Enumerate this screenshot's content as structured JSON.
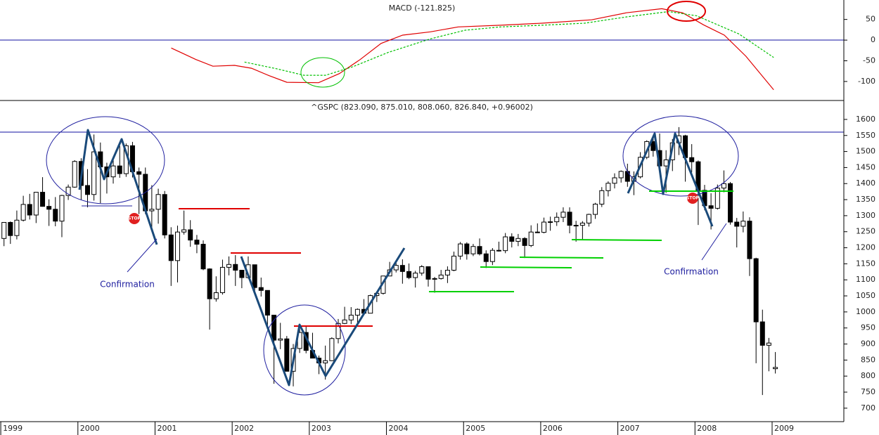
{
  "chart_data": [
    {
      "type": "line",
      "title": "MACD (-121.825)",
      "xlim": [
        1998.99,
        2009.93
      ],
      "ylim": [
        -146,
        97
      ],
      "yticks": [
        -100,
        -50,
        0,
        50
      ],
      "series": [
        {
          "color": "#e00000",
          "style": "solid",
          "x": [
            2001.21,
            2001.53,
            2001.75,
            2002.03,
            2002.25,
            2002.48,
            2002.71,
            2003.12,
            2003.39,
            2003.66,
            2003.93,
            2004.21,
            2004.57,
            2004.93,
            2005.48,
            2006.02,
            2006.66,
            2007.11,
            2007.57,
            2007.84,
            2008.11,
            2008.38,
            2008.66,
            2009.02
          ],
          "values": [
            -19,
            -47,
            -63,
            -61,
            -68,
            -86,
            -102,
            -103,
            -81,
            -47,
            -8,
            12,
            20,
            32,
            36,
            41,
            49,
            66,
            76,
            66,
            37,
            12,
            -39,
            -120
          ]
        },
        {
          "color": "#00c000",
          "style": "dashed",
          "x": [
            2002.16,
            2002.57,
            2002.93,
            2003.21,
            2003.57,
            2004.02,
            2004.57,
            2005.02,
            2005.48,
            2006.02,
            2006.57,
            2007.11,
            2007.66,
            2008.02,
            2008.57,
            2009.02
          ],
          "values": [
            -53,
            -69,
            -85,
            -85,
            -64,
            -30,
            3,
            24,
            32,
            36,
            41,
            56,
            69,
            59,
            15,
            -42
          ]
        }
      ]
    },
    {
      "type": "candlestick",
      "title": "^GSPC (823.090, 875.010, 808.060, 826.840, +0.96002)",
      "xlim": [
        1998.99,
        2009.93
      ],
      "xticks": [
        1999,
        2000,
        2001,
        2002,
        2003,
        2004,
        2005,
        2006,
        2007,
        2008,
        2009
      ],
      "ylim": [
        658,
        1659
      ],
      "yticks": [
        700,
        750,
        800,
        850,
        900,
        950,
        1000,
        1050,
        1100,
        1150,
        1200,
        1250,
        1300,
        1350,
        1400,
        1450,
        1500,
        1550,
        1600
      ],
      "up_color": "#ffffff",
      "down_color": "#000000",
      "annotations": [
        "Confirmation",
        "Confirmation",
        "STOP",
        "STOP"
      ],
      "x": [
        1999.042,
        1999.125,
        1999.208,
        1999.292,
        1999.375,
        1999.458,
        1999.542,
        1999.625,
        1999.708,
        1999.792,
        1999.875,
        1999.958,
        2000.042,
        2000.125,
        2000.208,
        2000.292,
        2000.375,
        2000.458,
        2000.542,
        2000.625,
        2000.708,
        2000.792,
        2000.875,
        2000.958,
        2001.042,
        2001.125,
        2001.208,
        2001.292,
        2001.375,
        2001.458,
        2001.542,
        2001.625,
        2001.708,
        2001.792,
        2001.875,
        2001.958,
        2002.042,
        2002.125,
        2002.208,
        2002.292,
        2002.375,
        2002.458,
        2002.542,
        2002.625,
        2002.708,
        2002.792,
        2002.875,
        2002.958,
        2003.042,
        2003.125,
        2003.208,
        2003.292,
        2003.375,
        2003.458,
        2003.542,
        2003.625,
        2003.708,
        2003.792,
        2003.875,
        2003.958,
        2004.042,
        2004.125,
        2004.208,
        2004.292,
        2004.375,
        2004.458,
        2004.542,
        2004.625,
        2004.708,
        2004.792,
        2004.875,
        2004.958,
        2005.042,
        2005.125,
        2005.208,
        2005.292,
        2005.375,
        2005.458,
        2005.542,
        2005.625,
        2005.708,
        2005.792,
        2005.875,
        2005.958,
        2006.042,
        2006.125,
        2006.208,
        2006.292,
        2006.375,
        2006.458,
        2006.542,
        2006.625,
        2006.708,
        2006.792,
        2006.875,
        2006.958,
        2007.042,
        2007.125,
        2007.208,
        2007.292,
        2007.375,
        2007.458,
        2007.542,
        2007.625,
        2007.708,
        2007.792,
        2007.875,
        2007.958,
        2008.042,
        2008.125,
        2008.208,
        2008.292,
        2008.375,
        2008.458,
        2008.542,
        2008.625,
        2008.708,
        2008.792,
        2008.875,
        2008.958,
        2009.042
      ],
      "open": [
        1229,
        1279,
        1238,
        1286,
        1335,
        1302,
        1373,
        1329,
        1320,
        1283,
        1363,
        1389,
        1469,
        1394,
        1366,
        1499,
        1452,
        1421,
        1455,
        1431,
        1518,
        1437,
        1429,
        1315,
        1320,
        1366,
        1240,
        1160,
        1249,
        1256,
        1224,
        1211,
        1134,
        1041,
        1060,
        1139,
        1148,
        1130,
        1107,
        1147,
        1076,
        1067,
        990,
        912,
        916,
        815,
        886,
        936,
        880,
        856,
        841,
        848,
        917,
        964,
        975,
        990,
        1008,
        996,
        1051,
        1058,
        1112,
        1131,
        1145,
        1126,
        1107,
        1121,
        1141,
        1102,
        1104,
        1115,
        1130,
        1174,
        1212,
        1181,
        1204,
        1181,
        1157,
        1192,
        1191,
        1234,
        1220,
        1229,
        1207,
        1249,
        1248,
        1280,
        1281,
        1295,
        1311,
        1270,
        1270,
        1277,
        1304,
        1336,
        1378,
        1401,
        1418,
        1438,
        1407,
        1421,
        1482,
        1531,
        1503,
        1455,
        1474,
        1527,
        1549,
        1481,
        1468,
        1379,
        1331,
        1323,
        1386,
        1400,
        1280,
        1267,
        1283,
        1166,
        969,
        896,
        823
      ],
      "high": [
        1280,
        1282,
        1316,
        1362,
        1368,
        1373,
        1420,
        1351,
        1358,
        1365,
        1397,
        1473,
        1479,
        1445,
        1553,
        1528,
        1465,
        1475,
        1518,
        1525,
        1530,
        1450,
        1450,
        1395,
        1384,
        1377,
        1264,
        1269,
        1316,
        1286,
        1240,
        1223,
        1136,
        1111,
        1163,
        1173,
        1177,
        1130,
        1173,
        1147,
        1107,
        1067,
        990,
        966,
        925,
        900,
        951,
        954,
        935,
        864,
        895,
        921,
        978,
        1016,
        1015,
        1011,
        1040,
        1054,
        1063,
        1112,
        1156,
        1159,
        1164,
        1151,
        1128,
        1146,
        1142,
        1109,
        1131,
        1142,
        1188,
        1218,
        1217,
        1212,
        1229,
        1192,
        1199,
        1219,
        1246,
        1245,
        1243,
        1233,
        1270,
        1276,
        1294,
        1297,
        1310,
        1326,
        1326,
        1284,
        1283,
        1306,
        1340,
        1389,
        1407,
        1432,
        1441,
        1462,
        1438,
        1498,
        1535,
        1540,
        1556,
        1504,
        1539,
        1576,
        1552,
        1523,
        1472,
        1396,
        1370,
        1397,
        1441,
        1405,
        1293,
        1313,
        1295,
        1169,
        1007,
        919,
        875
      ],
      "low": [
        1205,
        1212,
        1226,
        1282,
        1288,
        1277,
        1328,
        1268,
        1267,
        1233,
        1349,
        1387,
        1350,
        1326,
        1347,
        1339,
        1369,
        1400,
        1418,
        1421,
        1419,
        1305,
        1305,
        1255,
        1275,
        1229,
        1081,
        1092,
        1241,
        1203,
        1183,
        1130,
        945,
        1032,
        1054,
        1114,
        1081,
        1074,
        1104,
        1063,
        1048,
        952,
        776,
        884,
        815,
        768,
        872,
        871,
        856,
        806,
        789,
        847,
        902,
        962,
        962,
        960,
        990,
        996,
        1031,
        1054,
        1112,
        1123,
        1088,
        1102,
        1076,
        1113,
        1079,
        1060,
        1101,
        1090,
        1127,
        1163,
        1163,
        1174,
        1176,
        1137,
        1146,
        1188,
        1183,
        1201,
        1205,
        1168,
        1202,
        1246,
        1245,
        1253,
        1268,
        1280,
        1245,
        1219,
        1224,
        1266,
        1290,
        1327,
        1360,
        1385,
        1403,
        1390,
        1364,
        1416,
        1476,
        1484,
        1454,
        1371,
        1439,
        1489,
        1406,
        1435,
        1271,
        1317,
        1257,
        1319,
        1373,
        1272,
        1201,
        1248,
        1112,
        840,
        741,
        815,
        808
      ],
      "close": [
        1279,
        1238,
        1286,
        1335,
        1302,
        1373,
        1329,
        1320,
        1283,
        1363,
        1389,
        1469,
        1394,
        1366,
        1499,
        1452,
        1421,
        1455,
        1431,
        1518,
        1437,
        1429,
        1315,
        1320,
        1366,
        1240,
        1160,
        1249,
        1256,
        1224,
        1211,
        1134,
        1041,
        1060,
        1139,
        1148,
        1130,
        1107,
        1147,
        1076,
        1067,
        990,
        912,
        916,
        815,
        886,
        936,
        880,
        856,
        841,
        848,
        917,
        964,
        975,
        990,
        1008,
        996,
        1051,
        1058,
        1112,
        1131,
        1145,
        1126,
        1107,
        1121,
        1141,
        1102,
        1104,
        1115,
        1130,
        1174,
        1212,
        1181,
        1204,
        1181,
        1157,
        1192,
        1191,
        1234,
        1220,
        1229,
        1207,
        1249,
        1248,
        1280,
        1281,
        1295,
        1311,
        1270,
        1270,
        1277,
        1304,
        1336,
        1378,
        1401,
        1418,
        1438,
        1407,
        1421,
        1482,
        1531,
        1503,
        1455,
        1474,
        1527,
        1549,
        1481,
        1468,
        1379,
        1331,
        1323,
        1386,
        1400,
        1280,
        1267,
        1283,
        1166,
        969,
        896,
        903,
        827
      ]
    }
  ]
}
